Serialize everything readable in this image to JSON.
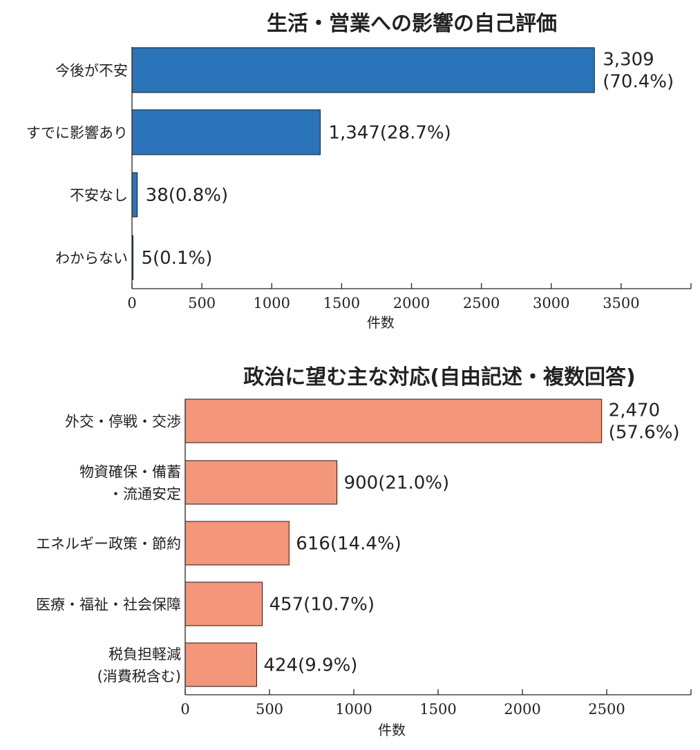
{
  "chart_data": [
    {
      "type": "bar",
      "orientation": "horizontal",
      "title": "生活・営業への影響の自己評価",
      "categories": [
        "今後が不安",
        "すでに影響あり",
        "不安なし",
        "わからない"
      ],
      "values": [
        3309,
        1347,
        38,
        5
      ],
      "value_labels": [
        [
          "3,309",
          "(70.4%)"
        ],
        [
          "1,347(28.7%)"
        ],
        [
          "38(0.8%)"
        ],
        [
          "5(0.1%)"
        ]
      ],
      "xlabel": "件数",
      "xlim": [
        0,
        4000
      ],
      "xticks": [
        0,
        500,
        1000,
        1500,
        2000,
        2500,
        3000,
        3500
      ],
      "color": "#2b74ba"
    },
    {
      "type": "bar",
      "orientation": "horizontal",
      "title": "政治に望む主な対応(自由記述・複数回答)",
      "categories": [
        [
          "外交・停戦・交渉"
        ],
        [
          "物資確保・備蓄",
          "・流通安定"
        ],
        [
          "エネルギー政策・節約"
        ],
        [
          "医療・福祉・社会保障"
        ],
        [
          "税負担軽減",
          "(消費税含む)"
        ]
      ],
      "values": [
        2470,
        900,
        616,
        457,
        424
      ],
      "value_labels": [
        [
          "2,470",
          "(57.6%)"
        ],
        [
          "900(21.0%)"
        ],
        [
          "616(14.4%)"
        ],
        [
          "457(10.7%)"
        ],
        [
          "424(9.9%)"
        ]
      ],
      "xlabel": "件数",
      "xlim": [
        0,
        3000
      ],
      "xticks": [
        0,
        500,
        1000,
        1500,
        2000,
        2500
      ],
      "color": "#f4967a"
    }
  ]
}
